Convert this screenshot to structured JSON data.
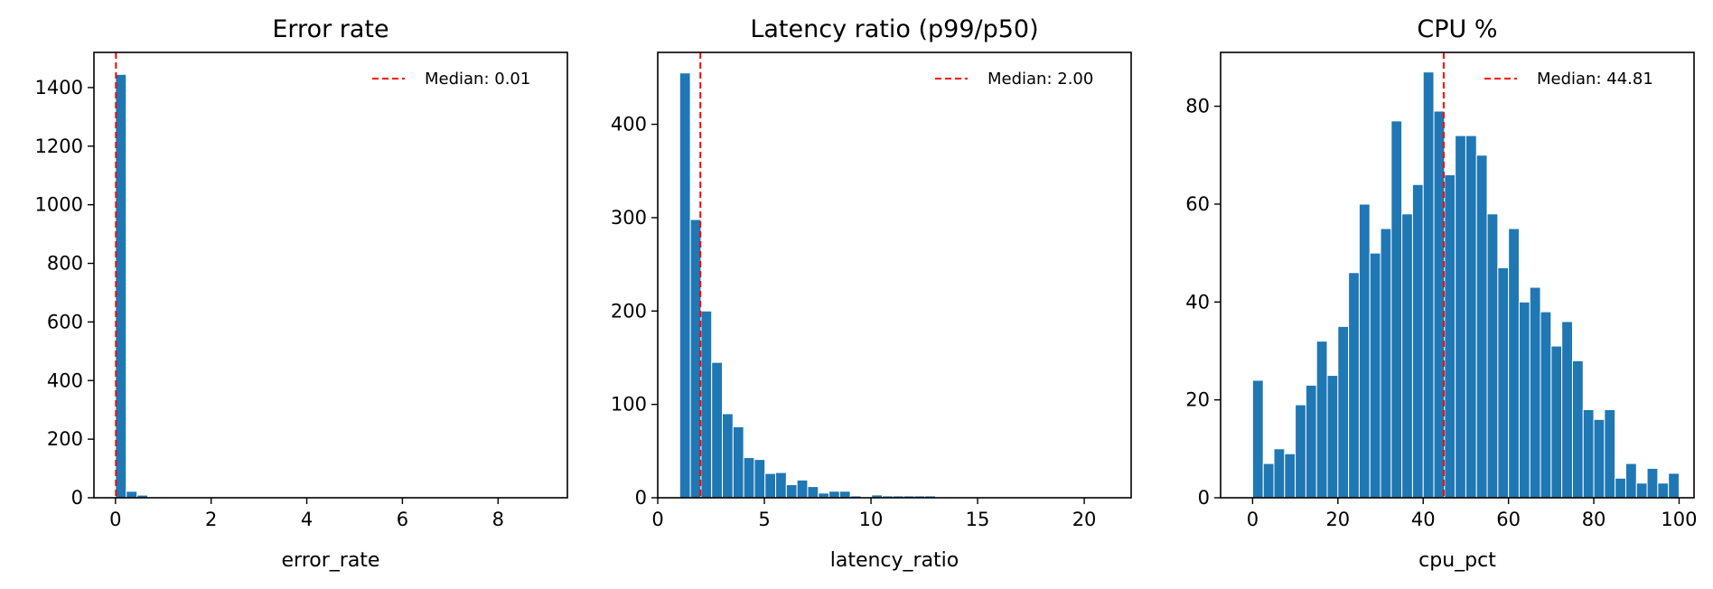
{
  "figure": {
    "background": "#ffffff",
    "bar_color": "#1f77b4",
    "median_color": "#ff0000"
  },
  "chart_data": [
    {
      "type": "bar",
      "title": "Error rate",
      "xlabel": "error_rate",
      "ylabel": "",
      "xlim": [
        -0.45,
        9.45
      ],
      "ylim": [
        0,
        1520
      ],
      "xticks": [
        0,
        2,
        4,
        6,
        8
      ],
      "yticks": [
        0,
        200,
        400,
        600,
        800,
        1000,
        1200,
        1400
      ],
      "bin_start": 0,
      "bin_width": 0.225,
      "values": [
        1445,
        22,
        9,
        3,
        2,
        1,
        1,
        1,
        1,
        0,
        1,
        0,
        0,
        0,
        0,
        0,
        0,
        0,
        0,
        0,
        0,
        0,
        0,
        0,
        0,
        0,
        0,
        0,
        0,
        0,
        0,
        0,
        0,
        0,
        0,
        0,
        0,
        0,
        0,
        1
      ],
      "median": 0.01,
      "legend_label": "Median: 0.01",
      "legend_position": "top-right"
    },
    {
      "type": "bar",
      "title": "Latency ratio (p99/p50)",
      "xlabel": "latency_ratio",
      "ylabel": "",
      "xlim": [
        0,
        22.2
      ],
      "ylim": [
        0,
        477
      ],
      "xticks": [
        0,
        5,
        10,
        15,
        20
      ],
      "yticks": [
        0,
        100,
        200,
        300,
        400
      ],
      "bin_start": 1.03,
      "bin_width": 0.5,
      "values": [
        455,
        298,
        200,
        145,
        90,
        76,
        43,
        41,
        26,
        27,
        14,
        19,
        12,
        5,
        7,
        7,
        2,
        0,
        3,
        2,
        2,
        2,
        2,
        2,
        1,
        0,
        1,
        0,
        0,
        1,
        0,
        0,
        0,
        0,
        0,
        0,
        0,
        0,
        0,
        1
      ],
      "median": 2.0,
      "legend_label": "Median: 2.00",
      "legend_position": "top-right"
    },
    {
      "type": "bar",
      "title": "CPU %",
      "xlabel": "cpu_pct",
      "ylabel": "",
      "xlim": [
        -7.5,
        103.5
      ],
      "ylim": [
        0,
        91
      ],
      "xticks": [
        0,
        20,
        40,
        60,
        80,
        100
      ],
      "yticks": [
        0,
        20,
        40,
        60,
        80
      ],
      "bin_start": 0,
      "bin_width": 2.5,
      "values": [
        24,
        7,
        10,
        9,
        19,
        23,
        32,
        25,
        35,
        46,
        60,
        50,
        55,
        77,
        58,
        64,
        87,
        79,
        66,
        74,
        74,
        70,
        58,
        47,
        55,
        40,
        43,
        38,
        31,
        36,
        28,
        18,
        16,
        18,
        4,
        7,
        3,
        6,
        3,
        5
      ],
      "median": 44.81,
      "legend_label": "Median: 44.81",
      "legend_position": "top-right"
    }
  ]
}
